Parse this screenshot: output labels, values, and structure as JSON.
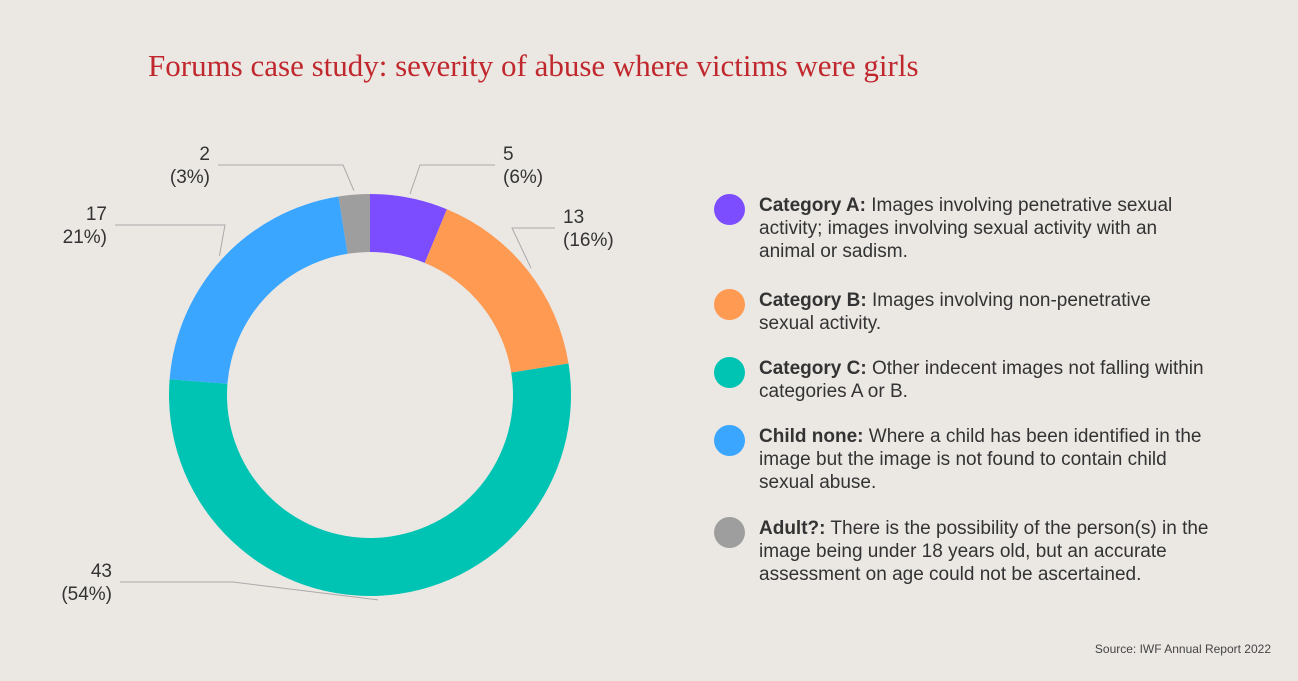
{
  "chart_data": {
    "type": "donut",
    "title": "Forums case study: severity of abuse where victims were girls",
    "categories": [
      "Category A:",
      "Category B:",
      "Category C:",
      "Child none:",
      "Adult?:"
    ],
    "descriptions": [
      "Images involving penetrative sexual activity; images involving sexual activity with an animal or sadism.",
      "Images involving non-penetrative sexual activity.",
      "Other indecent images not falling within categories A or B.",
      "Where a child has been identified in the image but the image is not found to contain child sexual abuse.",
      "There is the possibility of the person(s) in the image being under 18 years old, but an accurate assessment on age could not be ascertained."
    ],
    "values": [
      5,
      13,
      43,
      17,
      2
    ],
    "percent_labels": [
      "(6%)",
      "(16%)",
      "(54%)",
      "21%)",
      "(3%)"
    ],
    "colors": [
      "#7c4dff",
      "#ff9a52",
      "#00c4b3",
      "#3aa6ff",
      "#9e9e9e"
    ],
    "source": "Source: IWF Annual Report 2022"
  }
}
